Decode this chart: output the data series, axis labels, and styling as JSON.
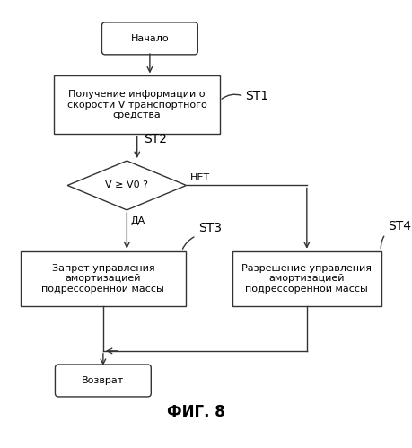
{
  "bg_color": "#ffffff",
  "title": "ФИГ. 8",
  "start_text": "Начало",
  "rect1_text": "Получение информации о\nскорости V транспортного\nсредства",
  "diamond_text": "V ≥ V0 ?",
  "rect2_text": "Запрет управления\nамортизацией\nподрессоренной массы",
  "rect3_text": "Разрешение управления\nамортизацией\nподрессоренной массы",
  "end_text": "Возврат",
  "label_st1": "ST1",
  "label_st2": "ST2",
  "label_st3": "ST3",
  "label_st4": "ST4",
  "label_da": "ДА",
  "label_net": "НЕТ"
}
